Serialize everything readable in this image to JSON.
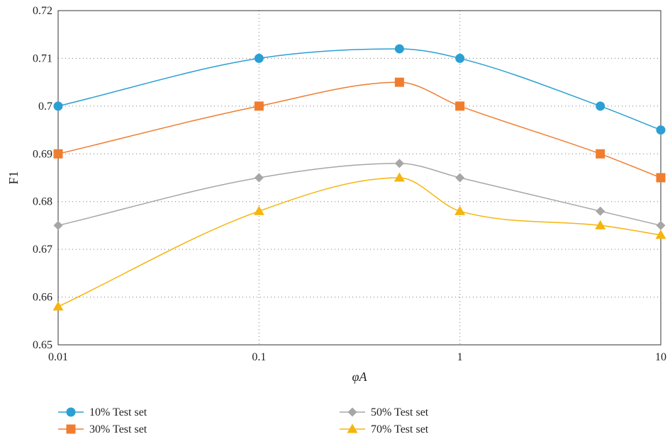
{
  "chart_data": {
    "type": "line",
    "title": "",
    "xlabel": "φA",
    "ylabel": "F1",
    "x_scale": "log",
    "x": [
      0.01,
      0.1,
      0.5,
      1,
      5,
      10
    ],
    "x_ticks": [
      0.01,
      0.1,
      1,
      10
    ],
    "x_tick_labels": [
      "0.01",
      "0.1",
      "1",
      "10"
    ],
    "xlim": [
      0.01,
      10
    ],
    "ylim": [
      0.65,
      0.72
    ],
    "y_ticks": [
      0.65,
      0.66,
      0.67,
      0.68,
      0.69,
      0.7,
      0.71,
      0.72
    ],
    "y_tick_labels": [
      "0.65",
      "0.66",
      "0.67",
      "0.68",
      "0.69",
      "0.7",
      "0.71",
      "0.72"
    ],
    "grid": true,
    "legend_position": "bottom",
    "series": [
      {
        "name": "10% Test set",
        "color": "#2b9fd3",
        "marker": "circle",
        "values": [
          0.7,
          0.71,
          0.712,
          0.71,
          0.7,
          0.695
        ]
      },
      {
        "name": "30% Test set",
        "color": "#f07d2f",
        "marker": "square",
        "values": [
          0.69,
          0.7,
          0.705,
          0.7,
          0.69,
          0.685
        ]
      },
      {
        "name": "50% Test set",
        "color": "#a6a6a6",
        "marker": "diamond",
        "values": [
          0.675,
          0.685,
          0.688,
          0.685,
          0.678,
          0.675
        ]
      },
      {
        "name": "70% Test set",
        "color": "#f5b50d",
        "marker": "triangle",
        "values": [
          0.658,
          0.678,
          0.685,
          0.678,
          0.675,
          0.673
        ]
      }
    ]
  }
}
